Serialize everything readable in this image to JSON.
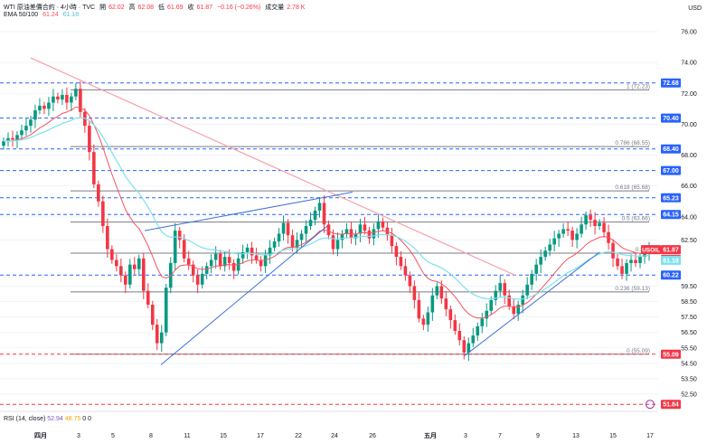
{
  "header": {
    "symbol_line": "WTI 原油差價合約 · 4小時 · TVC",
    "open_label": "開",
    "open": "62.02",
    "high_label": "高",
    "high": "62.08",
    "low_label": "低",
    "low": "61.69",
    "close_label": "收",
    "close": "61.87",
    "change": "−0.16 (−0.26%)",
    "volume_label": "成交量",
    "volume": "2.78 K",
    "ema_label": "EMA 50/100",
    "ema50": "61.24",
    "ema100": "61.18",
    "currency": "USD"
  },
  "rsi": {
    "label": "RSI (14, close)",
    "v1": "52.94",
    "v2": "48.75",
    "v3": "0",
    "v4": "0"
  },
  "colors": {
    "up": "#089981",
    "down": "#f23645",
    "ema50": "#f7525f",
    "ema100": "#7ee0ef",
    "trend": "#3d6fd6",
    "hline": "#2962ff",
    "fib": "#787b86",
    "red_dash": "#f23645"
  },
  "chart_data": {
    "type": "candlestick",
    "ylim": [
      51.5,
      77.0
    ],
    "y_ticks": [
      "76.00",
      "74.00",
      "72.00",
      "70.00",
      "68.00",
      "66.00",
      "64.00",
      "62.50",
      "59.50",
      "58.50",
      "57.50",
      "56.50",
      "55.50",
      "54.50",
      "53.50",
      "52.50"
    ],
    "x_ticks": [
      {
        "label": "四月",
        "bold": true
      },
      {
        "label": "3"
      },
      {
        "label": "5"
      },
      {
        "label": "8"
      },
      {
        "label": "11"
      },
      {
        "label": "15"
      },
      {
        "label": "17"
      },
      {
        "label": "22"
      },
      {
        "label": "24"
      },
      {
        "label": "26"
      },
      {
        "label": "五月",
        "bold": true
      },
      {
        "label": "3"
      },
      {
        "label": "7"
      },
      {
        "label": "9"
      },
      {
        "label": "13"
      },
      {
        "label": "15"
      },
      {
        "label": "17"
      }
    ],
    "fib_levels": [
      {
        "ratio": "1",
        "value": 72.23,
        "label": "1 (72.23)"
      },
      {
        "ratio": "0.786",
        "value": 68.55,
        "label": "0.786 (68.55)"
      },
      {
        "ratio": "0.618",
        "value": 65.68,
        "label": "0.618 (65.68)"
      },
      {
        "ratio": "0.5",
        "value": 63.66,
        "label": "0.5 (63.66)"
      },
      {
        "ratio": "0.382",
        "value": 61.64,
        "label": "0.382"
      },
      {
        "ratio": "0.236",
        "value": 59.13,
        "label": "0.236 (59.13)"
      },
      {
        "ratio": "0",
        "value": 55.09,
        "label": "0 (55.09)"
      }
    ],
    "price_labels": [
      {
        "value": 72.68,
        "text": "72.68",
        "color": "#2962ff"
      },
      {
        "value": 70.4,
        "text": "70.40",
        "color": "#2962ff"
      },
      {
        "value": 68.4,
        "text": "68.40",
        "color": "#2962ff"
      },
      {
        "value": 67.0,
        "text": "67.00",
        "color": "#2962ff"
      },
      {
        "value": 65.23,
        "text": "65.23",
        "color": "#2962ff"
      },
      {
        "value": 64.15,
        "text": "64.15",
        "color": "#2962ff"
      },
      {
        "value": 61.87,
        "text": "61.87",
        "color": "#f23645",
        "tag": "USOIL"
      },
      {
        "value": 61.24,
        "text": "61.24",
        "color": "#f23645"
      },
      {
        "value": 61.18,
        "text": "61.18",
        "color": "#7ee0ef"
      },
      {
        "value": 60.22,
        "text": "60.22",
        "color": "#2962ff"
      },
      {
        "value": 55.09,
        "text": "55.09",
        "color": "#f23645"
      },
      {
        "value": 51.84,
        "text": "51.84",
        "color": "#f23645"
      }
    ],
    "blue_dashed_levels": [
      72.68,
      70.4,
      68.4,
      67.0,
      65.23,
      64.15,
      60.22
    ],
    "red_dashed_levels": [
      55.09,
      51.84
    ],
    "candles_close": [
      68.9,
      69.1,
      69.0,
      69.3,
      69.6,
      69.9,
      70.3,
      70.9,
      71.2,
      71.0,
      71.4,
      71.8,
      71.6,
      71.9,
      71.4,
      71.8,
      72.3,
      70.8,
      69.9,
      68.2,
      66.1,
      65.0,
      63.4,
      61.9,
      61.2,
      60.8,
      60.2,
      59.6,
      60.9,
      60.6,
      61.3,
      59.2,
      58.3,
      57.0,
      55.8,
      56.5,
      59.4,
      61.0,
      63.1,
      62.5,
      61.3,
      60.9,
      60.2,
      59.6,
      60.3,
      60.8,
      61.2,
      61.6,
      60.8,
      61.4,
      61.0,
      60.5,
      61.3,
      61.7,
      62.0,
      61.5,
      61.2,
      60.8,
      61.5,
      62.0,
      62.4,
      62.9,
      63.6,
      62.8,
      62.0,
      62.5,
      62.9,
      63.4,
      63.8,
      64.4,
      64.9,
      63.5,
      62.8,
      61.9,
      62.5,
      62.9,
      63.2,
      62.6,
      62.9,
      63.5,
      63.1,
      62.6,
      63.2,
      63.7,
      63.3,
      62.8,
      62.1,
      61.4,
      60.8,
      60.2,
      59.5,
      58.6,
      57.4,
      57.0,
      57.8,
      58.9,
      59.5,
      58.7,
      58.0,
      57.3,
      56.6,
      56.0,
      55.2,
      55.8,
      56.3,
      56.9,
      57.4,
      57.9,
      58.6,
      59.2,
      59.7,
      58.9,
      58.2,
      57.7,
      58.3,
      58.9,
      59.6,
      60.3,
      60.9,
      61.4,
      61.8,
      62.2,
      62.6,
      62.9,
      63.2,
      63.1,
      62.5,
      62.9,
      63.5,
      64.1,
      63.8,
      63.4,
      63.6,
      63.0,
      62.3,
      61.3,
      60.8,
      60.3,
      61.0,
      61.2,
      61.0,
      61.4,
      61.7,
      61.87
    ]
  }
}
